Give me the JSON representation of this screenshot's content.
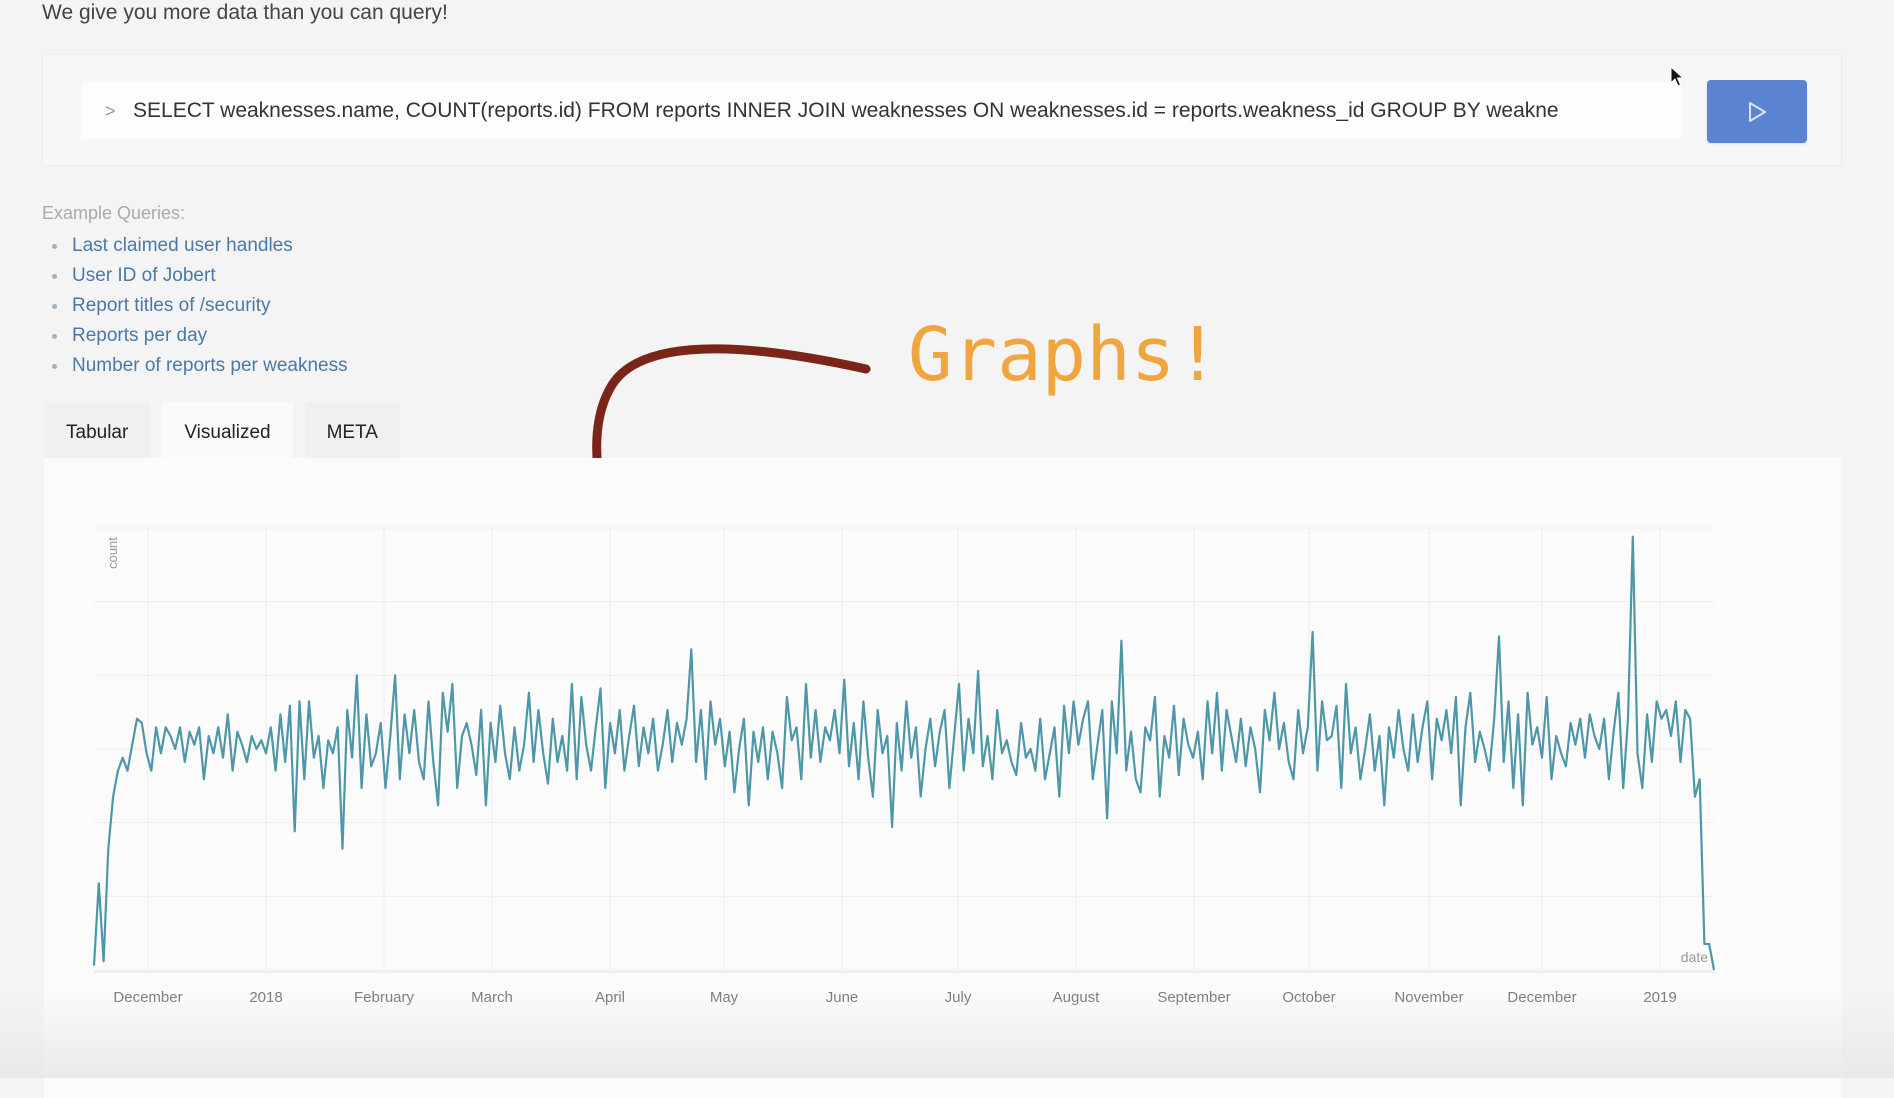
{
  "header": {
    "tagline": "We give you more data than you can query!"
  },
  "query": {
    "prompt": ">",
    "value": "SELECT weaknesses.name, COUNT(reports.id) FROM reports INNER JOIN weaknesses ON weaknesses.id = reports.weakness_id GROUP BY weakne",
    "run_icon": "play-icon"
  },
  "examples": {
    "heading": "Example Queries:",
    "items": [
      {
        "label": "Last claimed user handles"
      },
      {
        "label": "User ID of Jobert"
      },
      {
        "label": "Report titles of /security"
      },
      {
        "label": "Reports per day"
      },
      {
        "label": "Number of reports per weakness"
      }
    ]
  },
  "annotation": {
    "text": "Graphs!",
    "arrow_color": "#7b2518",
    "text_color": "#f0a540"
  },
  "tabs": [
    {
      "label": "Tabular",
      "active": false
    },
    {
      "label": "Visualized",
      "active": true
    },
    {
      "label": "META",
      "active": false
    }
  ],
  "chart_data": {
    "type": "line",
    "xlabel": "date",
    "ylabel": "count",
    "x_tick_labels": [
      "December",
      "2018",
      "February",
      "March",
      "April",
      "May",
      "June",
      "July",
      "August",
      "September",
      "October",
      "November",
      "December",
      "2019"
    ],
    "x_start": "2017-11-18",
    "x_end": "2019-01-16",
    "grid": true,
    "line_color": "#4e97a8",
    "series": [
      {
        "values": [
          0.5,
          10.0,
          1.0,
          14.0,
          20.0,
          23.0,
          24.5,
          23.0,
          26.0,
          29.0,
          28.5,
          25.0,
          23.0,
          28.0,
          25.0,
          28.0,
          27.0,
          25.5,
          28.0,
          24.0,
          27.5,
          26.0,
          28.0,
          22.0,
          27.0,
          25.0,
          28.0,
          24.5,
          29.5,
          23.0,
          27.5,
          26.0,
          24.0,
          27.0,
          25.5,
          26.5,
          25.0,
          28.0,
          23.0,
          29.5,
          24.0,
          30.5,
          16.0,
          31.0,
          22.0,
          31.0,
          24.5,
          27.0,
          21.0,
          26.5,
          25.0,
          28.0,
          14.0,
          30.0,
          24.5,
          34.0,
          21.0,
          29.5,
          23.5,
          25.0,
          28.5,
          21.0,
          27.0,
          34.0,
          22.0,
          29.5,
          25.0,
          30.0,
          24.0,
          22.0,
          31.0,
          24.0,
          19.0,
          32.0,
          27.5,
          33.0,
          21.0,
          27.0,
          28.5,
          26.0,
          22.5,
          30.0,
          19.0,
          28.5,
          24.0,
          30.5,
          25.0,
          22.0,
          28.0,
          23.0,
          26.0,
          32.0,
          24.0,
          30.0,
          25.0,
          21.5,
          29.0,
          24.0,
          27.0,
          23.0,
          33.0,
          22.0,
          31.5,
          26.0,
          23.0,
          28.0,
          32.5,
          21.0,
          28.5,
          25.0,
          30.0,
          23.0,
          27.0,
          30.5,
          23.5,
          28.0,
          25.0,
          29.0,
          23.0,
          26.0,
          30.0,
          24.0,
          28.5,
          26.0,
          29.0,
          37.0,
          24.0,
          30.0,
          22.0,
          31.0,
          26.0,
          29.0,
          23.5,
          27.5,
          20.5,
          25.5,
          29.0,
          19.0,
          27.5,
          24.0,
          28.0,
          22.0,
          27.5,
          25.0,
          21.0,
          31.5,
          26.5,
          28.0,
          22.0,
          33.0,
          24.5,
          30.0,
          24.0,
          28.0,
          26.5,
          30.0,
          25.0,
          33.5,
          23.5,
          28.5,
          22.0,
          31.0,
          24.5,
          20.0,
          30.0,
          25.0,
          27.0,
          16.5,
          28.5,
          23.0,
          31.0,
          24.5,
          28.0,
          20.0,
          25.5,
          29.0,
          23.5,
          27.5,
          30.0,
          21.0,
          27.0,
          33.0,
          23.0,
          29.0,
          25.0,
          34.5,
          23.5,
          27.0,
          22.0,
          30.0,
          25.0,
          26.5,
          24.0,
          22.5,
          28.5,
          24.5,
          25.5,
          23.0,
          29.0,
          22.0,
          25.0,
          28.0,
          20.0,
          30.5,
          25.0,
          31.0,
          26.0,
          29.0,
          31.0,
          22.0,
          26.0,
          30.0,
          17.5,
          31.0,
          25.0,
          38.0,
          23.0,
          27.5,
          22.0,
          20.5,
          28.0,
          26.5,
          31.5,
          20.0,
          27.0,
          24.5,
          30.5,
          22.5,
          29.0,
          26.0,
          24.5,
          27.5,
          22.0,
          31.0,
          25.0,
          32.0,
          23.0,
          30.0,
          27.0,
          24.0,
          29.0,
          23.5,
          28.0,
          25.5,
          20.5,
          30.0,
          26.5,
          32.0,
          25.5,
          28.5,
          24.0,
          22.0,
          30.0,
          25.0,
          28.0,
          39.0,
          23.0,
          31.0,
          26.5,
          27.0,
          30.5,
          21.0,
          33.0,
          25.0,
          28.0,
          22.0,
          25.5,
          29.5,
          23.0,
          27.0,
          19.0,
          28.0,
          24.5,
          30.0,
          25.5,
          23.0,
          29.5,
          24.0,
          28.0,
          31.0,
          22.0,
          29.0,
          26.5,
          30.0,
          25.0,
          31.5,
          19.0,
          28.0,
          32.0,
          24.0,
          27.5,
          25.5,
          23.0,
          29.0,
          38.5,
          24.0,
          31.0,
          21.0,
          29.5,
          19.0,
          32.0,
          26.0,
          28.0,
          24.5,
          31.5,
          22.0,
          27.0,
          25.0,
          23.5,
          28.5,
          26.0,
          29.0,
          24.5,
          29.5,
          27.0,
          25.5,
          29.0,
          22.0,
          27.5,
          32.0,
          21.0,
          29.0,
          50.0,
          25.0,
          21.0,
          29.5,
          24.0,
          31.0,
          29.0,
          30.0,
          27.0,
          31.0,
          24.0,
          30.0,
          29.0,
          20.0,
          22.0,
          3.0,
          3.0,
          0.0
        ]
      }
    ]
  }
}
